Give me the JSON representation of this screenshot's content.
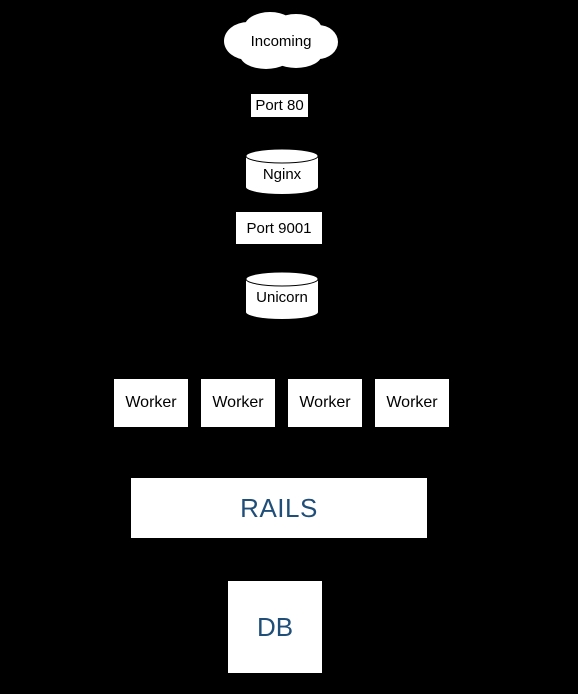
{
  "incoming": {
    "label": "Incoming"
  },
  "connectors": {
    "port_80": "Port 80",
    "port_9001": "Port 9001"
  },
  "servers": {
    "nginx": "Nginx",
    "unicorn": "Unicorn"
  },
  "workers": [
    "Worker",
    "Worker",
    "Worker",
    "Worker"
  ],
  "app": {
    "rails": "RAILS"
  },
  "database": {
    "db": "DB"
  },
  "colors": {
    "background": "#000000",
    "box": "#ffffff",
    "accent_text": "#1f4e79"
  }
}
